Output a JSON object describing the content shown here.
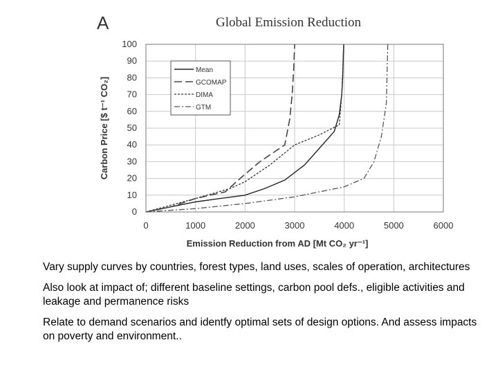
{
  "chart_data": {
    "type": "line",
    "panel_label": "A",
    "title": "Global Emission Reduction",
    "xlabel": "Emission Reduction from AD [Mt CO₂ yr⁻¹]",
    "ylabel": "Carbon Price [$ t⁻¹ CO₂]",
    "xlim": [
      0,
      6000
    ],
    "ylim": [
      0,
      100
    ],
    "xticks": [
      "0",
      "1000",
      "2000",
      "3000",
      "4000",
      "5000",
      "6000"
    ],
    "yticks": [
      "0",
      "10",
      "20",
      "30",
      "40",
      "50",
      "60",
      "70",
      "80",
      "90",
      "100"
    ],
    "legend_position": "top-left",
    "series": [
      {
        "name": "Mean",
        "dash": "solid",
        "x": [
          0,
          500,
          1000,
          1500,
          2000,
          2400,
          2800,
          3200,
          3500,
          3800,
          3900,
          3950,
          3970,
          3980,
          3990
        ],
        "y": [
          0,
          3,
          6,
          8,
          10,
          14,
          19,
          28,
          38,
          48,
          58,
          70,
          80,
          90,
          100
        ]
      },
      {
        "name": "GCOMAP",
        "dash": "long-dash",
        "x": [
          0,
          500,
          1000,
          1600,
          1900,
          2300,
          2800,
          2900,
          2950,
          2980,
          3000
        ],
        "y": [
          0,
          3,
          8,
          12,
          20,
          30,
          40,
          55,
          70,
          85,
          100
        ]
      },
      {
        "name": "DIMA",
        "dash": "short-dash",
        "x": [
          0,
          500,
          1000,
          1700,
          2000,
          2500,
          3000,
          3500,
          3900,
          3950,
          3990
        ],
        "y": [
          0,
          4,
          8,
          14,
          18,
          28,
          40,
          46,
          52,
          70,
          100
        ]
      },
      {
        "name": "GTM",
        "dash": "dash-dot",
        "x": [
          0,
          1000,
          2000,
          3000,
          4000,
          4400,
          4600,
          4750,
          4850,
          4880
        ],
        "y": [
          0,
          2,
          5,
          9,
          15,
          20,
          30,
          45,
          65,
          100
        ]
      }
    ]
  },
  "notes": [
    "Vary supply curves by countries, forest types, land uses, scales of operation, architectures",
    "Also look at impact of; different baseline settings, carbon pool defs., eligible activities and leakage and permanence risks",
    "Relate to demand scenarios and identfy optimal sets of design options. And assess impacts on poverty and environment.."
  ]
}
